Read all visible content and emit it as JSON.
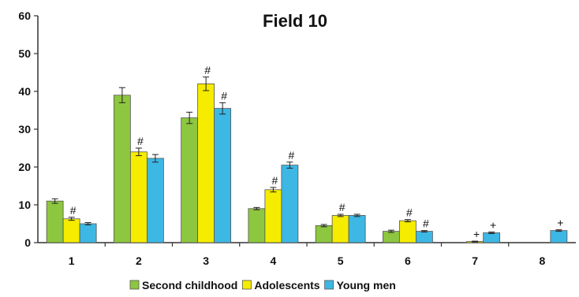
{
  "chart_data": {
    "type": "bar",
    "title": "Field 10",
    "xlabel": "",
    "ylabel": "",
    "ylim": [
      0,
      60
    ],
    "yticks": [
      0,
      10,
      20,
      30,
      40,
      50,
      60
    ],
    "categories": [
      "1",
      "2",
      "3",
      "4",
      "5",
      "6",
      "7",
      "8"
    ],
    "series": [
      {
        "name": "Second childhood",
        "color": "#8dc63f",
        "values": [
          11,
          39,
          33,
          9,
          4.5,
          3,
          0,
          0
        ],
        "errors": [
          0.6,
          2,
          1.5,
          0.3,
          0.3,
          0.3,
          0,
          0
        ],
        "annotations": [
          "",
          "",
          "",
          "",
          "",
          "",
          "",
          ""
        ]
      },
      {
        "name": "Adolescents",
        "color": "#f5ec00",
        "values": [
          6.3,
          24,
          42,
          14,
          7.2,
          5.8,
          0.3,
          0
        ],
        "errors": [
          0.4,
          1,
          1.8,
          0.6,
          0.3,
          0.3,
          0.1,
          0
        ],
        "annotations": [
          "#",
          "#",
          "#",
          "#",
          "#",
          "#",
          "+",
          ""
        ]
      },
      {
        "name": "Young men",
        "color": "#3db7e4",
        "values": [
          5,
          22.3,
          35.5,
          20.5,
          7.2,
          3,
          2.6,
          3.2
        ],
        "errors": [
          0.3,
          1,
          1.5,
          0.8,
          0.3,
          0.2,
          0.2,
          0.2
        ],
        "annotations": [
          "",
          "",
          "#",
          "#",
          "",
          "#",
          "+",
          "+"
        ]
      }
    ],
    "legend_position": "bottom",
    "grid": false
  }
}
